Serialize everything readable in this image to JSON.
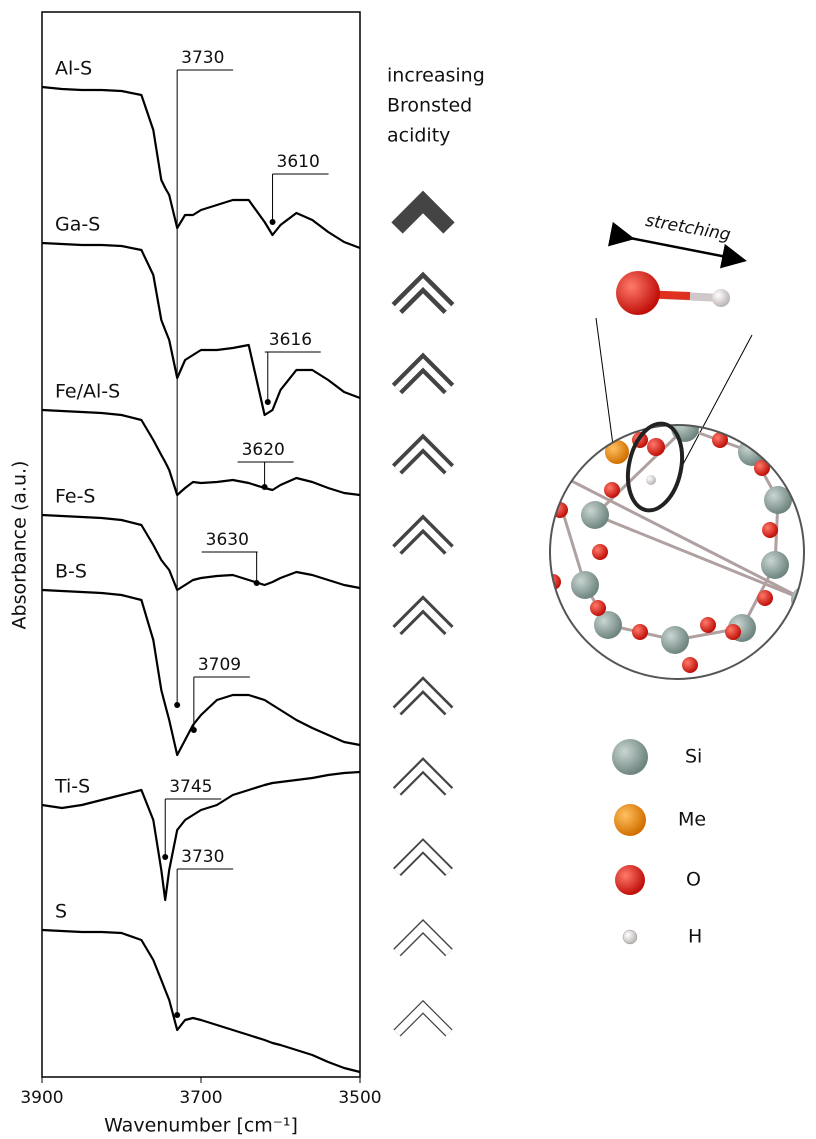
{
  "chart_data": {
    "type": "line",
    "xlabel": "Wavenumber [cm⁻¹]",
    "ylabel": "Absorbance (a.u.)",
    "xlim": [
      3900,
      3500
    ],
    "xticks": [
      3900,
      3700,
      3500
    ],
    "ylim": [
      0,
      1065
    ],
    "x": [
      3900,
      3875,
      3850,
      3825,
      3800,
      3775,
      3760,
      3750,
      3745,
      3740,
      3730,
      3720,
      3710,
      3700,
      3680,
      3660,
      3640,
      3620,
      3610,
      3600,
      3580,
      3560,
      3540,
      3520,
      3500
    ],
    "series": [
      {
        "name": "Al-S",
        "color": "#000000",
        "values": [
          990,
          988,
          987,
          987,
          986,
          982,
          947,
          897,
          889,
          882,
          849,
          862,
          862,
          867,
          872,
          877,
          877,
          855,
          842,
          852,
          864,
          857,
          845,
          835,
          829
        ]
      },
      {
        "name": "Ga-S",
        "color": "#000000",
        "values": [
          834,
          833,
          832,
          832,
          831,
          827,
          802,
          757,
          747,
          737,
          699,
          717,
          722,
          727,
          727,
          729,
          732,
          662,
          667,
          687,
          707,
          707,
          697,
          685,
          679
        ]
      },
      {
        "name": "Fe/Al-S",
        "color": "#000000",
        "values": [
          667,
          666,
          665,
          664,
          662,
          657,
          637,
          622,
          615,
          607,
          582,
          589,
          595,
          594,
          595,
          597,
          594,
          589,
          587,
          592,
          599,
          595,
          589,
          584,
          582
        ]
      },
      {
        "name": "Fe-S",
        "color": "#000000",
        "values": [
          562,
          561,
          560,
          559,
          557,
          552,
          532,
          517,
          512,
          507,
          487,
          492,
          497,
          499,
          501,
          502,
          497,
          492,
          495,
          499,
          505,
          502,
          497,
          492,
          489
        ]
      },
      {
        "name": "B-S",
        "color": "#000000",
        "values": [
          487,
          486,
          485,
          484,
          482,
          477,
          437,
          387,
          372,
          357,
          322,
          337,
          352,
          362,
          377,
          382,
          382,
          377,
          372,
          367,
          357,
          349,
          342,
          335,
          332
        ]
      },
      {
        "name": "Ti-S",
        "color": "#000000",
        "values": [
          272,
          269,
          272,
          277,
          282,
          287,
          257,
          207,
          177,
          207,
          247,
          257,
          262,
          267,
          272,
          282,
          287,
          292,
          294,
          295,
          297,
          299,
          302,
          304,
          305
        ]
      },
      {
        "name": "S",
        "color": "#000000",
        "values": [
          147,
          146,
          145,
          145,
          144,
          137,
          117,
          97,
          87,
          77,
          47,
          57,
          59,
          57,
          52,
          47,
          42,
          37,
          34,
          32,
          27,
          22,
          15,
          9,
          5
        ]
      }
    ],
    "annotations": [
      {
        "label": "3730",
        "x": 3730,
        "y": 372
      },
      {
        "label": "3610",
        "x": 3610,
        "y": 855
      },
      {
        "label": "3616",
        "x": 3616,
        "y": 675
      },
      {
        "label": "3620",
        "x": 3620,
        "y": 590
      },
      {
        "label": "3630",
        "x": 3630,
        "y": 494
      },
      {
        "label": "3709",
        "x": 3709,
        "y": 347
      },
      {
        "label": "3745",
        "x": 3745,
        "y": 220
      },
      {
        "label": "3730",
        "x": 3730,
        "y": 62
      }
    ]
  },
  "acidity_label": [
    "increasing",
    "Bronsted",
    "acidity"
  ],
  "stretching": "stretching",
  "atom_legend": [
    "Si",
    "Me",
    "O",
    "H"
  ]
}
